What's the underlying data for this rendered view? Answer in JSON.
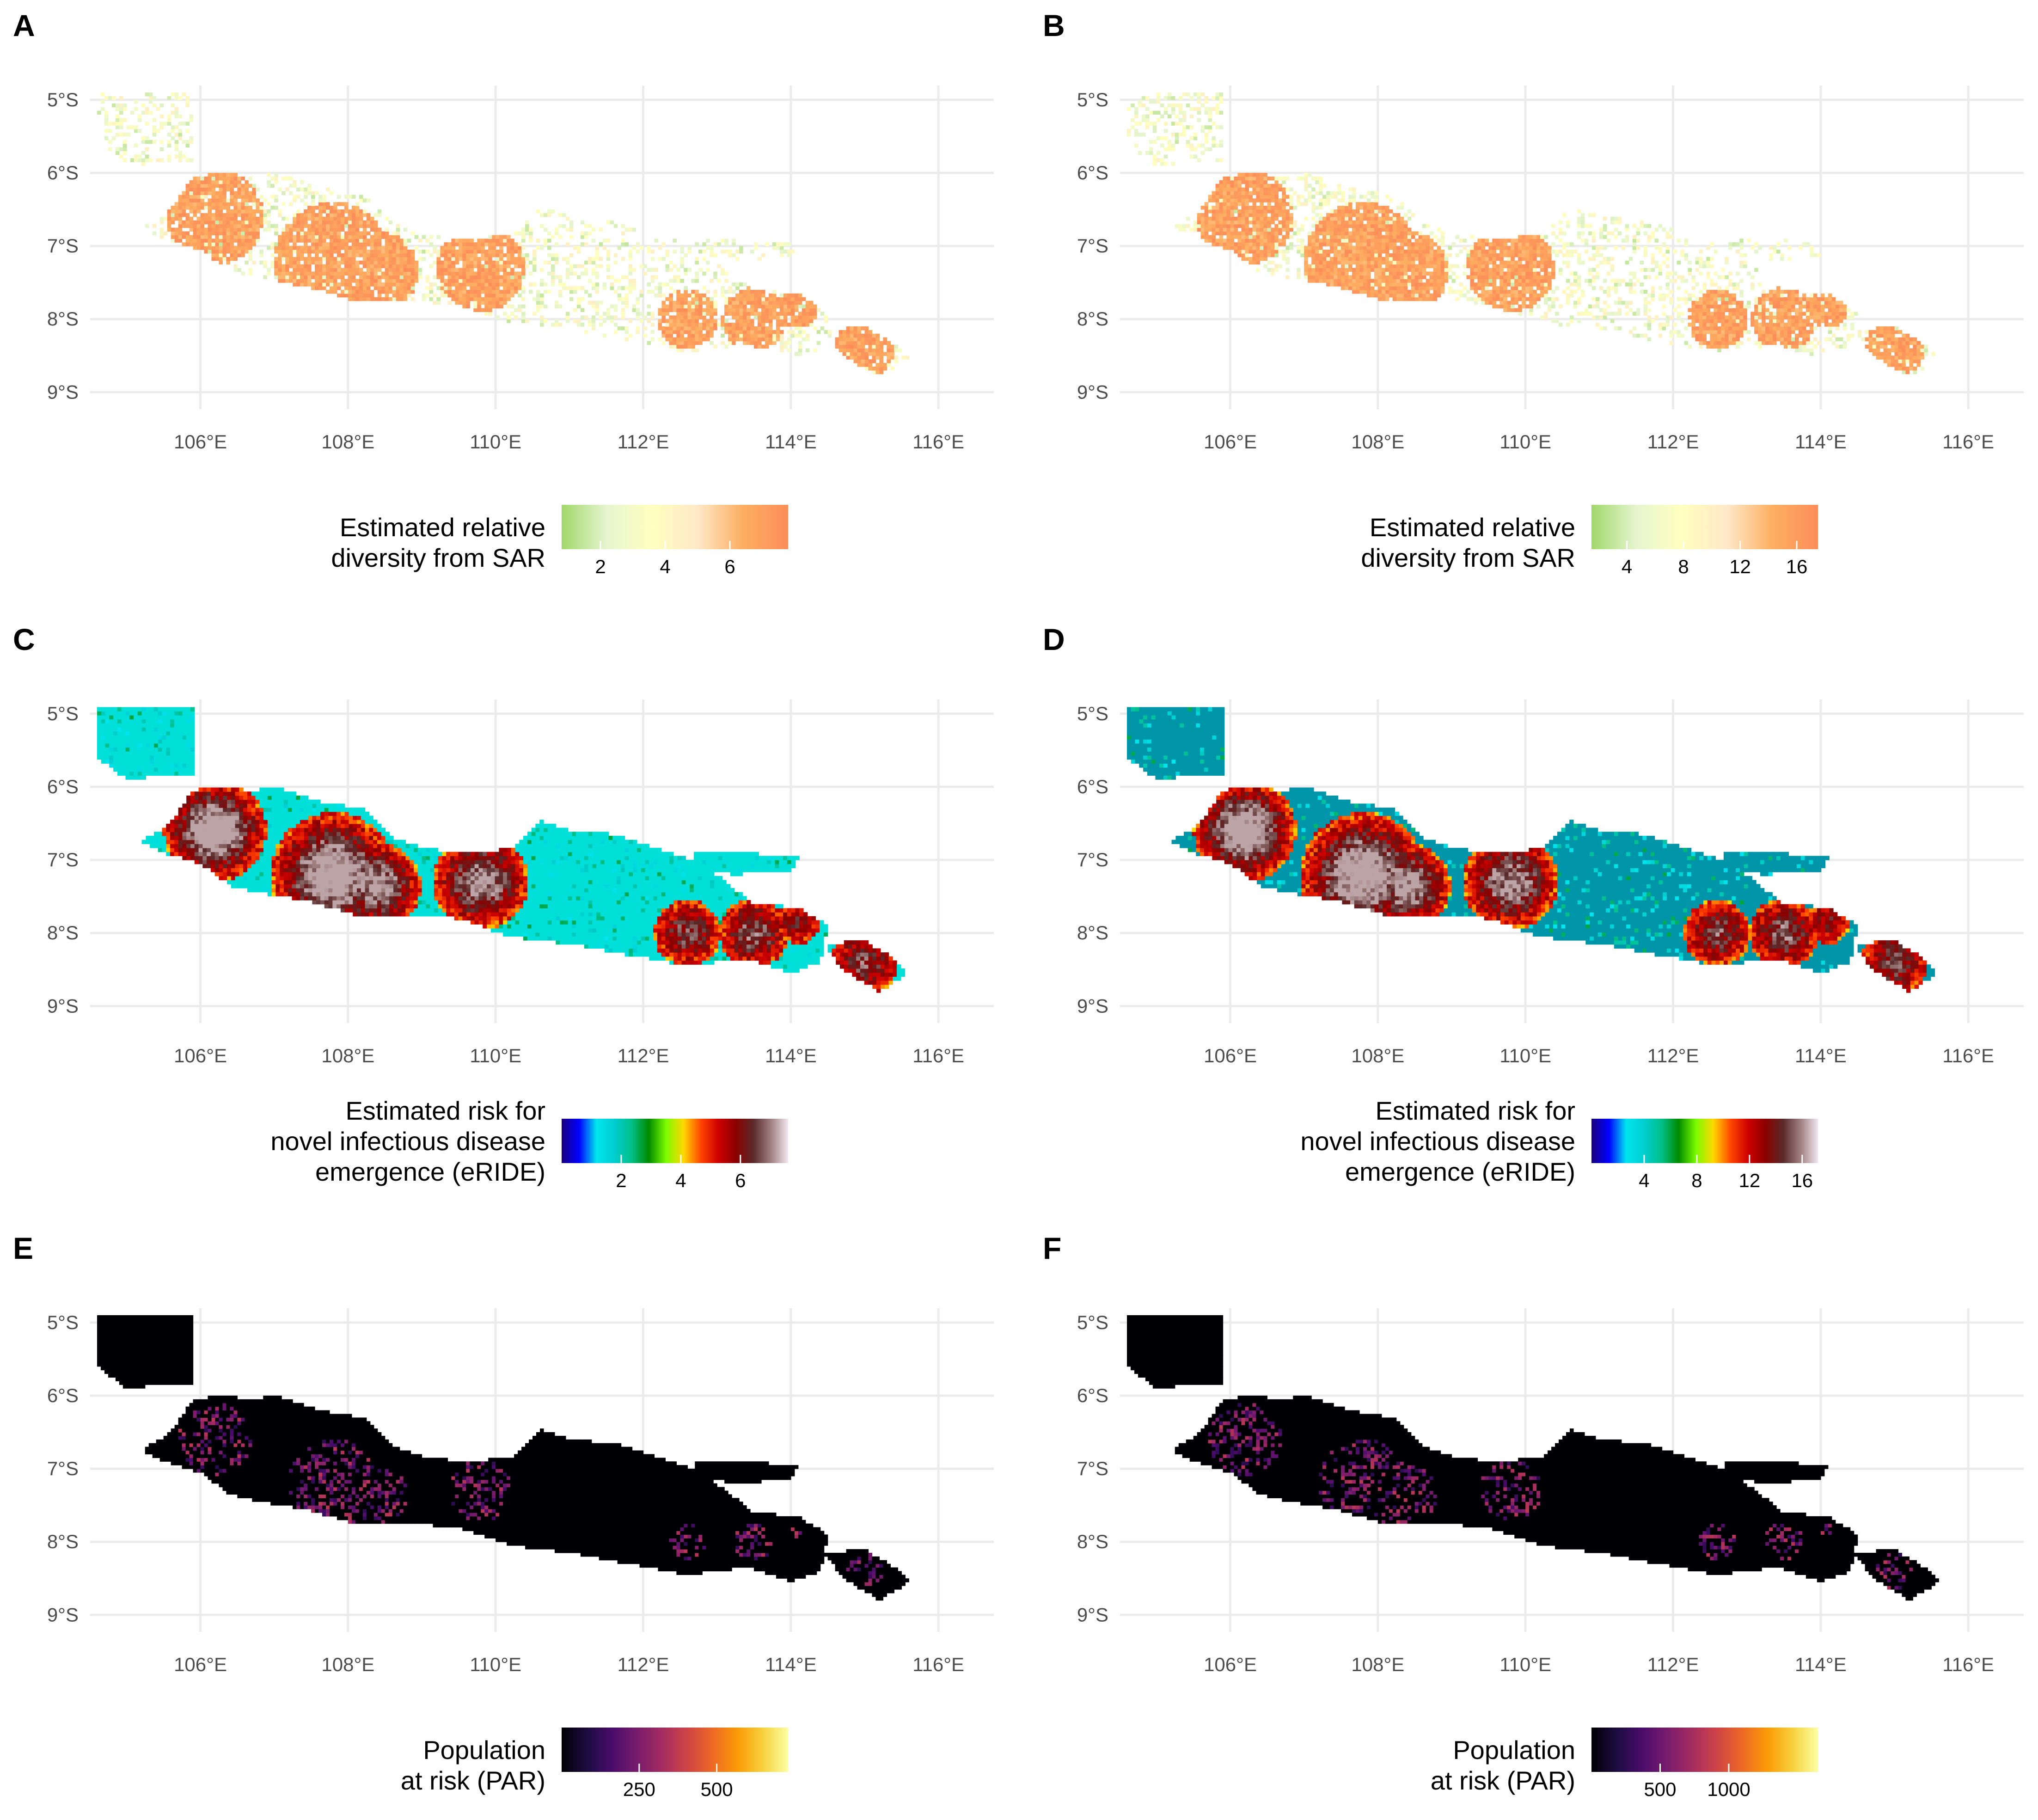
{
  "figure": {
    "colors": {
      "sar": [
        "#a1d76a",
        "#e6f5d0",
        "#ffffbf",
        "#fee8c8",
        "#fdae61",
        "#fc8d59"
      ],
      "eride": [
        "#1a0080",
        "#0000ff",
        "#00e5ee",
        "#00ced1",
        "#00c08a",
        "#008b00",
        "#7cfc00",
        "#ffd700",
        "#ff4500",
        "#cd0000",
        "#8b0000",
        "#5a2a2a",
        "#a08080",
        "#f0e6f0"
      ],
      "eride_background_C": "#00e0d8",
      "eride_background_D": "#0095a8",
      "par": [
        "#000004",
        "#1b0c41",
        "#4a0c6b",
        "#781c6d",
        "#a52c60",
        "#cf4446",
        "#ed6925",
        "#fb9b06",
        "#f7d13d",
        "#fcffa4"
      ],
      "par_land": "#000004"
    }
  },
  "chart_data": [
    {
      "panel": "A",
      "type": "heatmap",
      "map": "sar",
      "x_ticks": [
        "106°E",
        "108°E",
        "110°E",
        "112°E",
        "114°E",
        "116°E"
      ],
      "x_values": [
        106,
        108,
        110,
        112,
        114,
        116
      ],
      "y_ticks": [
        "5°S",
        "6°S",
        "7°S",
        "8°S",
        "9°S"
      ],
      "y_values": [
        -5,
        -6,
        -7,
        -8,
        -9
      ],
      "xlim": [
        104.6,
        116.5
      ],
      "ylim": [
        -9.2,
        -4.9
      ],
      "legend": {
        "title_lines": [
          "Estimated relative",
          "diversity from SAR"
        ],
        "ticks": [
          "2",
          "4",
          "6"
        ],
        "tick_values": [
          2,
          4,
          6
        ],
        "range": [
          0.8,
          7.8
        ],
        "placement": "bottom",
        "palette": "sar"
      }
    },
    {
      "panel": "B",
      "type": "heatmap",
      "map": "sar",
      "x_ticks": [
        "106°E",
        "108°E",
        "110°E",
        "112°E",
        "114°E",
        "116°E"
      ],
      "x_values": [
        106,
        108,
        110,
        112,
        114,
        116
      ],
      "y_ticks": [
        "5°S",
        "6°S",
        "7°S",
        "8°S",
        "9°S"
      ],
      "y_values": [
        -5,
        -6,
        -7,
        -8,
        -9
      ],
      "xlim": [
        104.6,
        116.5
      ],
      "ylim": [
        -9.2,
        -4.9
      ],
      "legend": {
        "title_lines": [
          "Estimated relative",
          "diversity from SAR"
        ],
        "ticks": [
          "4",
          "8",
          "12",
          "16"
        ],
        "tick_values": [
          4,
          8,
          12,
          16
        ],
        "range": [
          1.5,
          17.5
        ],
        "placement": "bottom",
        "palette": "sar"
      }
    },
    {
      "panel": "C",
      "type": "heatmap",
      "map": "eride",
      "x_ticks": [
        "106°E",
        "108°E",
        "110°E",
        "112°E",
        "114°E",
        "116°E"
      ],
      "x_values": [
        106,
        108,
        110,
        112,
        114,
        116
      ],
      "y_ticks": [
        "5°S",
        "6°S",
        "7°S",
        "8°S",
        "9°S"
      ],
      "y_values": [
        -5,
        -6,
        -7,
        -8,
        -9
      ],
      "xlim": [
        104.6,
        116.5
      ],
      "ylim": [
        -9.2,
        -4.9
      ],
      "legend": {
        "title_lines": [
          "Estimated risk for",
          "novel infectious disease",
          "emergence (eRIDE)"
        ],
        "ticks": [
          "2",
          "4",
          "6"
        ],
        "tick_values": [
          2,
          4,
          6
        ],
        "range": [
          0.0,
          7.6
        ],
        "placement": "bottom",
        "palette": "eride"
      }
    },
    {
      "panel": "D",
      "type": "heatmap",
      "map": "eride",
      "x_ticks": [
        "106°E",
        "108°E",
        "110°E",
        "112°E",
        "114°E",
        "116°E"
      ],
      "x_values": [
        106,
        108,
        110,
        112,
        114,
        116
      ],
      "y_ticks": [
        "5°S",
        "6°S",
        "7°S",
        "8°S",
        "9°S"
      ],
      "y_values": [
        -5,
        -6,
        -7,
        -8,
        -9
      ],
      "xlim": [
        104.6,
        116.5
      ],
      "ylim": [
        -9.2,
        -4.9
      ],
      "legend": {
        "title_lines": [
          "Estimated risk for",
          "novel infectious disease",
          "emergence (eRIDE)"
        ],
        "ticks": [
          "4",
          "8",
          "12",
          "16"
        ],
        "tick_values": [
          4,
          8,
          12,
          16
        ],
        "range": [
          0.0,
          17.2
        ],
        "placement": "bottom",
        "palette": "eride"
      }
    },
    {
      "panel": "E",
      "type": "heatmap",
      "map": "par",
      "x_ticks": [
        "106°E",
        "108°E",
        "110°E",
        "112°E",
        "114°E",
        "116°E"
      ],
      "x_values": [
        106,
        108,
        110,
        112,
        114,
        116
      ],
      "y_ticks": [
        "5°S",
        "6°S",
        "7°S",
        "8°S",
        "9°S"
      ],
      "y_values": [
        -5,
        -6,
        -7,
        -8,
        -9
      ],
      "xlim": [
        104.6,
        116.5
      ],
      "ylim": [
        -9.2,
        -4.9
      ],
      "legend": {
        "title_lines": [
          "Population",
          "at risk (PAR)"
        ],
        "ticks": [
          "250",
          "500"
        ],
        "tick_values": [
          250,
          500
        ],
        "range": [
          0,
          730
        ],
        "placement": "bottom",
        "palette": "par"
      }
    },
    {
      "panel": "F",
      "type": "heatmap",
      "map": "par",
      "x_ticks": [
        "106°E",
        "108°E",
        "110°E",
        "112°E",
        "114°E",
        "116°E"
      ],
      "x_values": [
        106,
        108,
        110,
        112,
        114,
        116
      ],
      "y_ticks": [
        "5°S",
        "6°S",
        "7°S",
        "8°S",
        "9°S"
      ],
      "y_values": [
        -5,
        -6,
        -7,
        -8,
        -9
      ],
      "xlim": [
        104.6,
        116.5
      ],
      "ylim": [
        -9.2,
        -4.9
      ],
      "legend": {
        "title_lines": [
          "Population",
          "at risk (PAR)"
        ],
        "ticks": [
          "500",
          "1000"
        ],
        "tick_values": [
          500,
          1000
        ],
        "range": [
          0,
          1650
        ],
        "placement": "bottom",
        "palette": "par"
      }
    }
  ]
}
